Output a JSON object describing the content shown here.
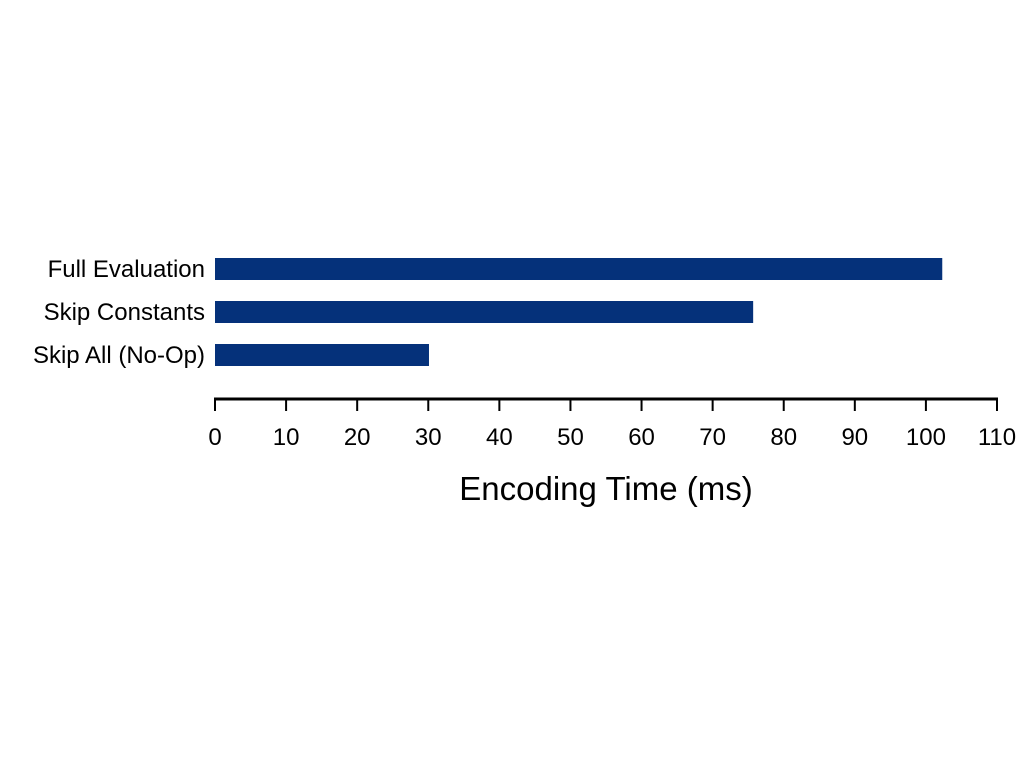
{
  "chart_data": {
    "type": "bar",
    "orientation": "horizontal",
    "categories": [
      "Full Evaluation",
      "Skip Constants",
      "Skip All (No-Op)"
    ],
    "values": [
      102.3,
      75.7,
      30.1
    ],
    "title": "",
    "xlabel": "Encoding Time (ms)",
    "ylabel": "",
    "xlim": [
      0,
      110
    ],
    "xticks": [
      "0",
      "10",
      "20",
      "30",
      "40",
      "50",
      "60",
      "70",
      "80",
      "90",
      "100",
      "110"
    ],
    "grid": false,
    "legend": "none",
    "bar_color": "#05317a"
  }
}
